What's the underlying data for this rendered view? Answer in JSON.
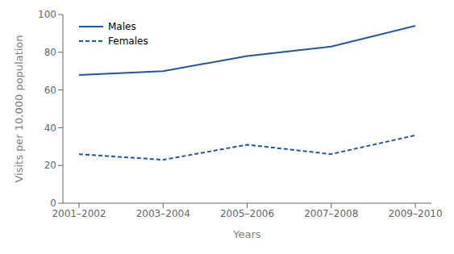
{
  "chart_data": {
    "type": "line",
    "categories": [
      "2001–2002",
      "2003–2004",
      "2005–2006",
      "2007–2008",
      "2009–2010"
    ],
    "series": [
      {
        "name": "Males",
        "color": "#2156a0",
        "values": [
          68,
          70,
          78,
          83,
          94
        ],
        "line_style": "solid"
      },
      {
        "name": "Females",
        "color": "#2156a0",
        "values": [
          26,
          23,
          31,
          26,
          36
        ],
        "line_style": "dashed"
      }
    ],
    "xlabel": "Years",
    "ylabel": "Visits per 10,000 population",
    "ylim": [
      0,
      100
    ],
    "yticks": [
      0,
      20,
      40,
      60,
      80,
      100
    ],
    "grid": false,
    "legend": "upper left"
  }
}
